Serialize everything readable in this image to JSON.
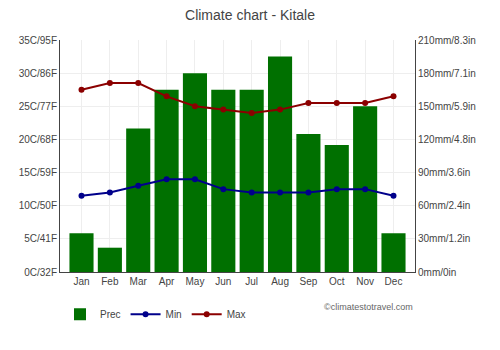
{
  "chart_data": {
    "type": "bar",
    "title": "Climate chart - Kitale",
    "categories": [
      "Jan",
      "Feb",
      "Mar",
      "Apr",
      "May",
      "Jun",
      "Jul",
      "Aug",
      "Sep",
      "Oct",
      "Nov",
      "Dec"
    ],
    "series": [
      {
        "name": "Prec",
        "type": "bar",
        "axis": "y2",
        "color": "#007000",
        "values": [
          35,
          22,
          130,
          165,
          180,
          165,
          165,
          195,
          125,
          115,
          150,
          35
        ]
      },
      {
        "name": "Min",
        "type": "line",
        "marker": "circle",
        "color": "#00008B",
        "values": [
          11.5,
          12.0,
          13.0,
          14.0,
          14.0,
          12.5,
          12.0,
          12.0,
          12.0,
          12.5,
          12.5,
          11.5
        ]
      },
      {
        "name": "Max",
        "type": "line",
        "marker": "circle",
        "color": "#8B0000",
        "values": [
          27.5,
          28.5,
          28.5,
          26.5,
          25.0,
          24.5,
          24.0,
          24.5,
          25.5,
          25.5,
          25.5,
          26.5
        ]
      }
    ],
    "ylim": [
      0,
      35
    ],
    "yticks": [
      {
        "value": 0,
        "label": "0C/32F"
      },
      {
        "value": 5,
        "label": "5C/41F"
      },
      {
        "value": 10,
        "label": "10C/50F"
      },
      {
        "value": 15,
        "label": "15C/59F"
      },
      {
        "value": 20,
        "label": "20C/68F"
      },
      {
        "value": 25,
        "label": "25C/77F"
      },
      {
        "value": 30,
        "label": "30C/86F"
      },
      {
        "value": 35,
        "label": "35C/95F"
      }
    ],
    "y2lim": [
      0,
      210
    ],
    "y2ticks": [
      {
        "value": 0,
        "label": "0mm/0in"
      },
      {
        "value": 30,
        "label": "30mm/1.2in"
      },
      {
        "value": 60,
        "label": "60mm/2.4in"
      },
      {
        "value": 90,
        "label": "90mm/3.6in"
      },
      {
        "value": 120,
        "label": "120mm/4.8in"
      },
      {
        "value": 150,
        "label": "150mm/5.9in"
      },
      {
        "value": 180,
        "label": "180mm/7.1in"
      },
      {
        "value": 210,
        "label": "210mm/8.3in"
      }
    ],
    "grid": true,
    "legend": "lower left",
    "annotations": [
      "©climatestotravel.com"
    ]
  }
}
